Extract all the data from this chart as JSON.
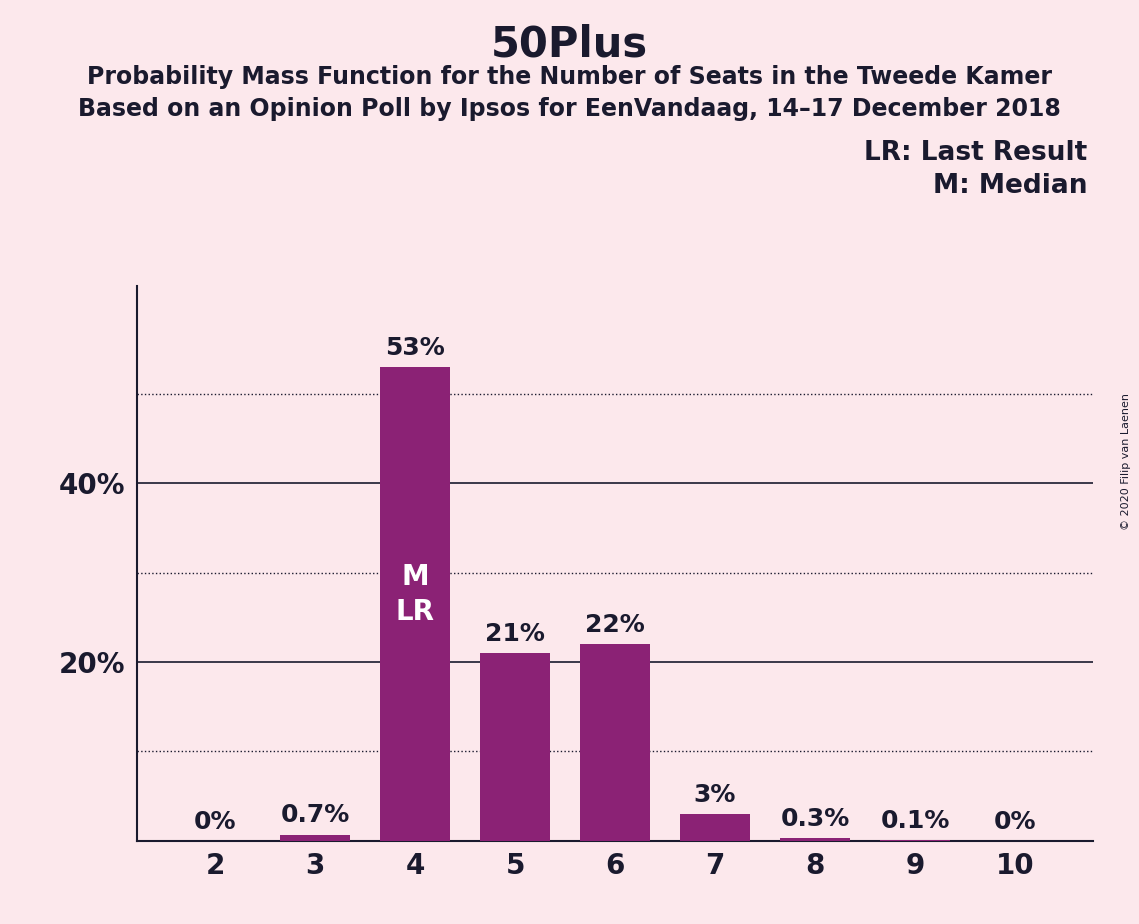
{
  "title": "50Plus",
  "subtitle1": "Probability Mass Function for the Number of Seats in the Tweede Kamer",
  "subtitle2": "Based on an Opinion Poll by Ipsos for EenVandaag, 14–17 December 2018",
  "copyright_text": "© 2020 Filip van Laenen",
  "categories": [
    2,
    3,
    4,
    5,
    6,
    7,
    8,
    9,
    10
  ],
  "values": [
    0.0,
    0.7,
    53.0,
    21.0,
    22.0,
    3.0,
    0.3,
    0.1,
    0.0
  ],
  "bar_color": "#8B2275",
  "background_color": "#fce8ec",
  "bar_labels": [
    "0%",
    "0.7%",
    "53%",
    "21%",
    "22%",
    "3%",
    "0.3%",
    "0.1%",
    "0%"
  ],
  "median_seat": 4,
  "last_result_seat": 4,
  "legend_lr": "LR: Last Result",
  "legend_m": "M: Median",
  "ylim": [
    0,
    62
  ],
  "solid_gridlines": [
    20,
    40
  ],
  "dotted_gridlines": [
    10,
    30,
    50
  ],
  "title_fontsize": 30,
  "subtitle_fontsize": 17,
  "axis_tick_fontsize": 20,
  "bar_label_fontsize": 18,
  "legend_fontsize": 19,
  "inbar_label_fontsize": 20,
  "copyright_fontsize": 8,
  "text_color": "#1a1a2e"
}
